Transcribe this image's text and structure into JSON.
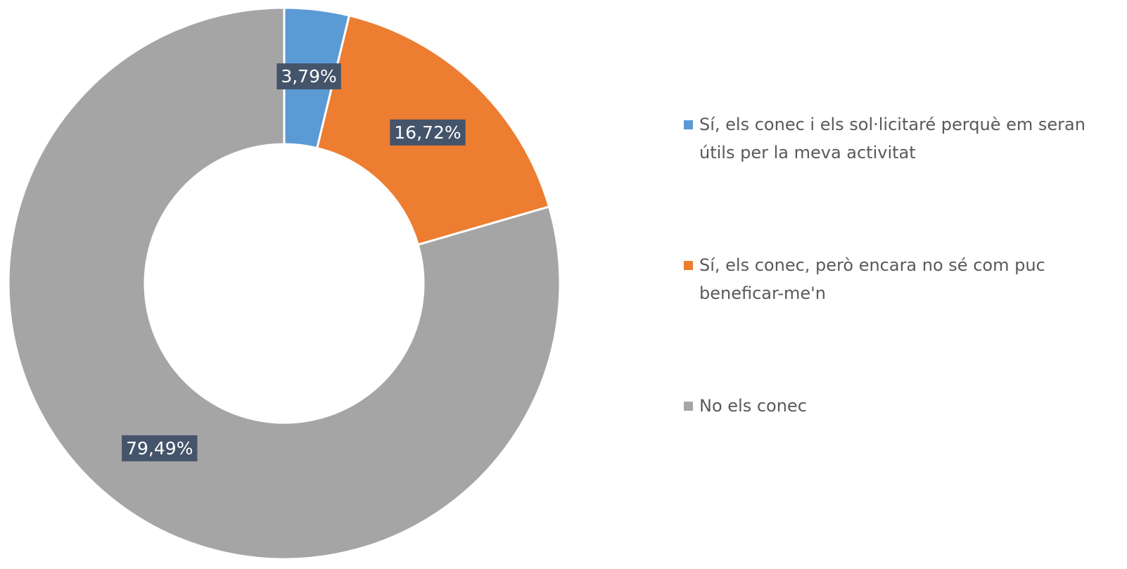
{
  "chart_data": {
    "type": "donut",
    "categories": [
      "Sí, els conec i els sol·licitaré perquè em seran útils per la meva activitat",
      "Sí, els conec, però encara no sé com puc beneficar-me'n",
      "No els conec"
    ],
    "values": [
      3.79,
      16.72,
      79.49
    ],
    "value_labels": [
      "3,79%",
      "16,72%",
      "79,49%"
    ],
    "colors": [
      "#5b9bd5",
      "#ed7d31",
      "#a5a5a5"
    ],
    "legend": "right"
  }
}
